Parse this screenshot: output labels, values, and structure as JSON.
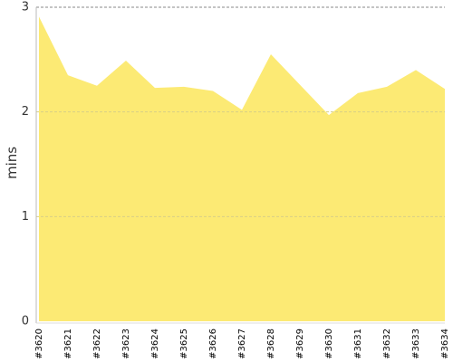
{
  "chart_data": {
    "type": "area",
    "y_label": "mins",
    "categories": [
      "#3620",
      "#3621",
      "#3622",
      "#3623",
      "#3624",
      "#3625",
      "#3626",
      "#3627",
      "#3628",
      "#3629",
      "#3630",
      "#3631",
      "#3632",
      "#3633",
      "#3634"
    ],
    "values": [
      2.91,
      2.35,
      2.25,
      2.49,
      2.23,
      2.24,
      2.2,
      2.02,
      2.55,
      2.26,
      1.97,
      2.18,
      2.24,
      2.4,
      2.22
    ],
    "color": "#fcea74",
    "ylim": [
      0,
      3
    ],
    "yticks": [
      0,
      1,
      2,
      3
    ],
    "grid": true
  }
}
